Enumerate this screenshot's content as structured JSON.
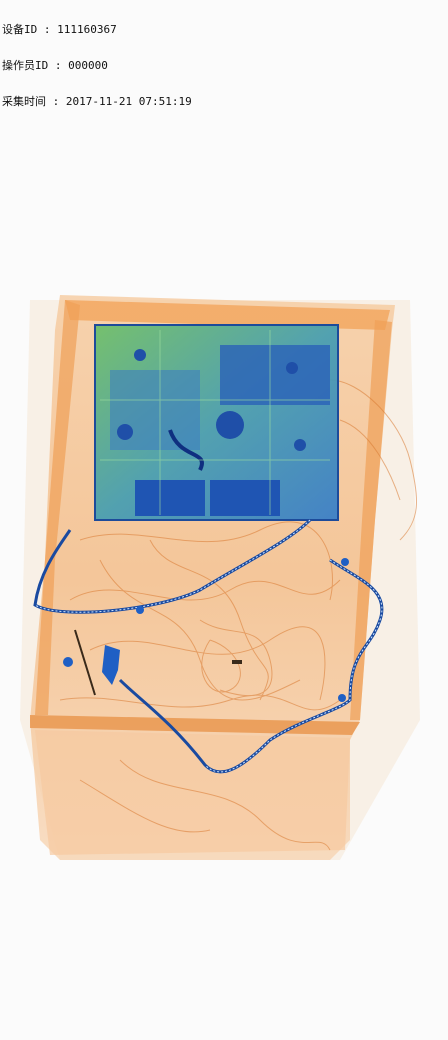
{
  "header": {
    "device_line": "设备ID : 111160367",
    "operator_line": "操作员ID : 000000",
    "capture_line": "采集时间 : 2017-11-21 07:51:19"
  },
  "colors": {
    "background": "#fbfbfb",
    "organic": "#f0a866",
    "metal_blue": "#1f5fc4",
    "mixed_green": "#7cc262"
  }
}
